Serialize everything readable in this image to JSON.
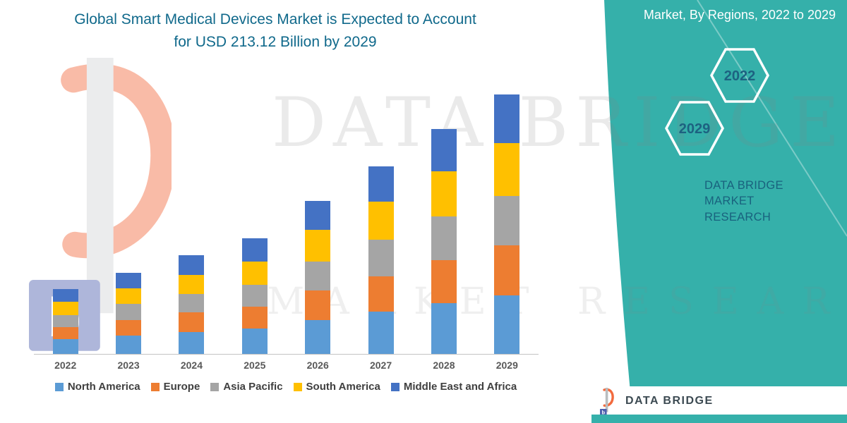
{
  "title": {
    "line1": "Global Smart Medical Devices Market is Expected to Account",
    "line2": "for USD 213.12 Billion by 2029"
  },
  "side_panel": {
    "heading": "Market, By Regions, 2022 to 2029",
    "hex_years": [
      "2022",
      "2029"
    ],
    "brand_line1": "DATA BRIDGE MARKET",
    "brand_line2": "RESEARCH",
    "accent_color": "#35b0aa"
  },
  "watermark": {
    "line1": "DATA BRIDGE",
    "line2": "MARKET RESEARCH"
  },
  "footer": {
    "brand": "DATA BRIDGE"
  },
  "chart_data": {
    "type": "bar",
    "stacked": true,
    "title": "Global Smart Medical Devices Market is Expected to Account for USD 213.12 Billion by 2029",
    "unit": "USD Billion",
    "categories": [
      "2022",
      "2023",
      "2024",
      "2025",
      "2026",
      "2027",
      "2028",
      "2029"
    ],
    "series": [
      {
        "name": "North America",
        "color": "#5B9BD5",
        "values": [
          12,
          15,
          18,
          21,
          28,
          35,
          42,
          48
        ]
      },
      {
        "name": "Europe",
        "color": "#ED7D31",
        "values": [
          10,
          13,
          16,
          18,
          24,
          29,
          35,
          41
        ]
      },
      {
        "name": "Asia Pacific",
        "color": "#A5A5A5",
        "values": [
          10,
          13,
          15,
          18,
          24,
          30,
          36,
          41
        ]
      },
      {
        "name": "South America",
        "color": "#FFC000",
        "values": [
          11,
          13,
          16,
          19,
          26,
          31,
          37,
          43
        ]
      },
      {
        "name": "Middle East and Africa",
        "color": "#4472C4",
        "values": [
          10,
          13,
          16,
          19,
          24,
          29,
          35,
          40.12
        ]
      }
    ],
    "totals_estimated": [
      53,
      67,
      81,
      95,
      126,
      154,
      185,
      213.12
    ],
    "ylim": [
      0,
      220
    ],
    "grid": false,
    "y_axis_visible": false,
    "x_axis_visible": true,
    "legend_position": "bottom"
  }
}
